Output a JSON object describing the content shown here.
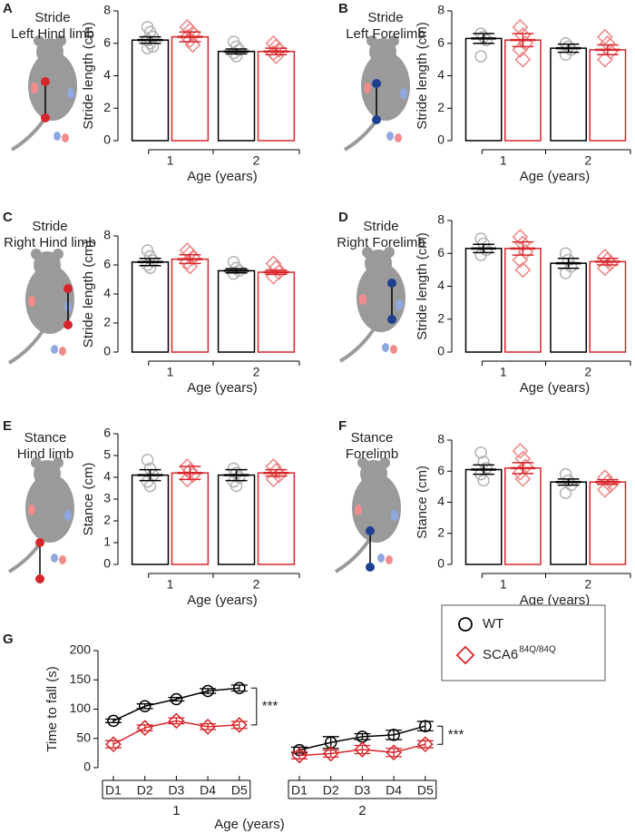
{
  "chart_data": [
    {
      "type": "bar",
      "panel": "A",
      "title": [
        "Stride",
        "Left Hind limb"
      ],
      "ylabel": "Stride length (cm)",
      "xlabel": "Age (years)",
      "categories": [
        "1",
        "2"
      ],
      "ylim": [
        0,
        8
      ],
      "yticks": [
        0,
        2,
        4,
        6,
        8
      ],
      "series": [
        {
          "color": "#000000",
          "point_color": "#b3b3b3",
          "marker": "circle",
          "values": [
            6.2,
            5.5
          ],
          "errors": [
            0.2,
            0.15
          ],
          "points": [
            [
              7.0,
              6.7,
              6.4,
              6.2,
              6.0,
              5.8,
              5.7
            ],
            [
              6.1,
              5.8,
              5.6,
              5.4,
              5.2
            ]
          ]
        },
        {
          "color": "#d7262b",
          "point_color": "#ef8585",
          "marker": "diamond",
          "values": [
            6.4,
            5.5
          ],
          "errors": [
            0.3,
            0.2
          ],
          "points": [
            [
              7.0,
              6.8,
              6.6,
              6.4,
              6.2,
              5.9
            ],
            [
              6.0,
              5.8,
              5.6,
              5.4,
              5.2
            ]
          ]
        }
      ]
    },
    {
      "type": "bar",
      "panel": "B",
      "title": [
        "Stride",
        "Left Forelimb"
      ],
      "ylabel": "Stride length (cm)",
      "xlabel": "Age (years)",
      "categories": [
        "1",
        "2"
      ],
      "ylim": [
        0,
        8
      ],
      "yticks": [
        0,
        2,
        4,
        6,
        8
      ],
      "series": [
        {
          "color": "#000000",
          "point_color": "#b3b3b3",
          "marker": "circle",
          "values": [
            6.3,
            5.7
          ],
          "errors": [
            0.3,
            0.25
          ],
          "points": [
            [
              6.6,
              6.4,
              6.2,
              5.2
            ],
            [
              6.0,
              5.8,
              5.6,
              5.3
            ]
          ]
        },
        {
          "color": "#d7262b",
          "point_color": "#ef8585",
          "marker": "diamond",
          "values": [
            6.2,
            5.6
          ],
          "errors": [
            0.4,
            0.3
          ],
          "points": [
            [
              7.0,
              6.5,
              6.0,
              5.6,
              5.0
            ],
            [
              6.4,
              6.0,
              5.5,
              5.0
            ]
          ]
        }
      ]
    },
    {
      "type": "bar",
      "panel": "C",
      "title": [
        "Stride",
        "Right Hind limb"
      ],
      "ylabel": "Stride length (cm)",
      "xlabel": "Age (years)",
      "categories": [
        "1",
        "2"
      ],
      "ylim": [
        0,
        8
      ],
      "yticks": [
        0,
        2,
        4,
        6,
        8
      ],
      "series": [
        {
          "color": "#000000",
          "point_color": "#b3b3b3",
          "marker": "circle",
          "values": [
            6.2,
            5.6
          ],
          "errors": [
            0.25,
            0.15
          ],
          "points": [
            [
              7.0,
              6.6,
              6.3,
              6.0,
              5.8
            ],
            [
              6.2,
              5.8,
              5.6,
              5.4
            ]
          ]
        },
        {
          "color": "#d7262b",
          "point_color": "#ef8585",
          "marker": "diamond",
          "values": [
            6.4,
            5.5
          ],
          "errors": [
            0.3,
            0.15
          ],
          "points": [
            [
              7.0,
              6.8,
              6.5,
              6.2,
              5.9
            ],
            [
              6.1,
              5.8,
              5.5,
              5.2
            ]
          ]
        }
      ]
    },
    {
      "type": "bar",
      "panel": "D",
      "title": [
        "Stride",
        "Right Forelimb"
      ],
      "ylabel": "Stride length (cm)",
      "xlabel": "Age (years)",
      "categories": [
        "1",
        "2"
      ],
      "ylim": [
        0,
        8
      ],
      "yticks": [
        0,
        2,
        4,
        6,
        8
      ],
      "series": [
        {
          "color": "#000000",
          "point_color": "#b3b3b3",
          "marker": "circle",
          "values": [
            6.3,
            5.4
          ],
          "errors": [
            0.25,
            0.3
          ],
          "points": [
            [
              6.9,
              6.6,
              6.2,
              5.9
            ],
            [
              6.0,
              5.6,
              5.2,
              4.8
            ]
          ]
        },
        {
          "color": "#d7262b",
          "point_color": "#ef8585",
          "marker": "diamond",
          "values": [
            6.3,
            5.5
          ],
          "errors": [
            0.4,
            0.2
          ],
          "points": [
            [
              7.0,
              6.6,
              6.1,
              5.6,
              5.0
            ],
            [
              5.8,
              5.6,
              5.4,
              5.1
            ]
          ]
        }
      ]
    },
    {
      "type": "bar",
      "panel": "E",
      "title": [
        "Stance",
        "Hind limb"
      ],
      "ylabel": "Stance (cm)",
      "xlabel": "Age (years)",
      "categories": [
        "1",
        "2"
      ],
      "ylim": [
        0,
        6
      ],
      "yticks": [
        0,
        1,
        2,
        3,
        4,
        5,
        6
      ],
      "series": [
        {
          "color": "#000000",
          "point_color": "#b3b3b3",
          "marker": "circle",
          "values": [
            4.1,
            4.1
          ],
          "errors": [
            0.25,
            0.25
          ],
          "points": [
            [
              4.8,
              4.4,
              4.1,
              3.8,
              3.6
            ],
            [
              4.4,
              4.2,
              4.0,
              3.8,
              3.6
            ]
          ]
        },
        {
          "color": "#d7262b",
          "point_color": "#ef8585",
          "marker": "diamond",
          "values": [
            4.2,
            4.2
          ],
          "errors": [
            0.3,
            0.15
          ],
          "points": [
            [
              4.5,
              4.3,
              4.1,
              3.9
            ],
            [
              4.5,
              4.3,
              4.1,
              3.9
            ]
          ]
        }
      ]
    },
    {
      "type": "bar",
      "panel": "F",
      "title": [
        "Stance",
        "Forelimb"
      ],
      "ylabel": "Stance (cm)",
      "xlabel": "Age (years)",
      "categories": [
        "1",
        "2"
      ],
      "ylim": [
        0,
        8
      ],
      "yticks": [
        0,
        2,
        4,
        6,
        8
      ],
      "series": [
        {
          "color": "#000000",
          "point_color": "#b3b3b3",
          "marker": "circle",
          "values": [
            6.1,
            5.3
          ],
          "errors": [
            0.3,
            0.2
          ],
          "points": [
            [
              7.2,
              6.6,
              6.2,
              5.8,
              5.4
            ],
            [
              5.8,
              5.4,
              5.1,
              4.6
            ]
          ]
        },
        {
          "color": "#d7262b",
          "point_color": "#ef8585",
          "marker": "diamond",
          "values": [
            6.2,
            5.3
          ],
          "errors": [
            0.35,
            0.15
          ],
          "points": [
            [
              7.3,
              6.8,
              6.3,
              5.9,
              5.5
            ],
            [
              5.6,
              5.3,
              5.1,
              4.8
            ]
          ]
        }
      ]
    },
    {
      "type": "line",
      "panel": "G",
      "ylabel": "Time to fall (s)",
      "xlabel": "Age (years)",
      "groups": [
        "1",
        "2"
      ],
      "categories": [
        "D1",
        "D2",
        "D3",
        "D4",
        "D5"
      ],
      "ylim": [
        0,
        200
      ],
      "yticks": [
        0,
        50,
        100,
        150,
        200
      ],
      "annotations": [
        "***",
        "***"
      ],
      "series": [
        {
          "name": "WT",
          "color": "#000000",
          "marker": "circle",
          "values": [
            [
              80,
              105,
              117,
              131,
              136
            ],
            [
              30,
              43,
              53,
              56,
              71
            ]
          ],
          "errors": [
            [
              3,
              4,
              3,
              4,
              5
            ],
            [
              5,
              10,
              5,
              8,
              8
            ]
          ]
        },
        {
          "name": "SCA6",
          "name_superscript": "84Q/84Q",
          "color": "#d7262b",
          "marker": "diamond",
          "values": [
            [
              40,
              68,
              80,
              70,
              73
            ],
            [
              21,
              24,
              31,
              26,
              40
            ]
          ],
          "errors": [
            [
              6,
              5,
              5,
              5,
              6
            ],
            [
              6,
              6,
              7,
              7,
              6
            ]
          ]
        }
      ]
    }
  ]
}
